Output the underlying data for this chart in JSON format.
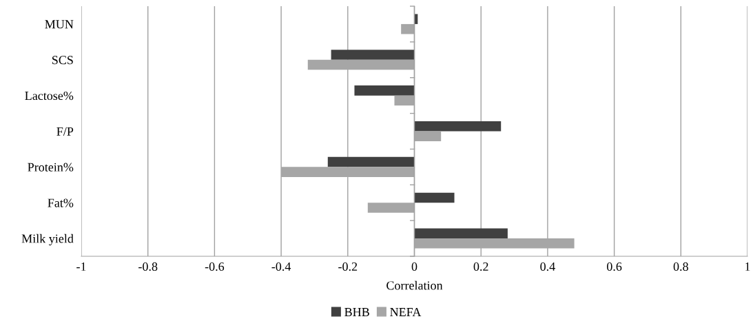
{
  "chart_data": {
    "type": "bar",
    "orientation": "horizontal",
    "xlabel": "Correlation",
    "categories": [
      "MUN",
      "SCS",
      "Lactose%",
      "F/P",
      "Protein%",
      "Fat%",
      "Milk yield"
    ],
    "series": [
      {
        "name": "BHB",
        "color": "#404040",
        "values": [
          0.01,
          -0.25,
          -0.18,
          0.26,
          -0.26,
          0.12,
          0.28
        ]
      },
      {
        "name": "NEFA",
        "color": "#a6a6a6",
        "values": [
          -0.04,
          -0.32,
          -0.06,
          0.08,
          -0.4,
          -0.14,
          0.48
        ]
      }
    ],
    "xlim": [
      -1,
      1
    ],
    "xticks": [
      -1,
      -0.8,
      -0.6,
      -0.4,
      -0.2,
      0,
      0.2,
      0.4,
      0.6,
      0.8,
      1
    ],
    "grid": "x",
    "legend": "bottom"
  }
}
